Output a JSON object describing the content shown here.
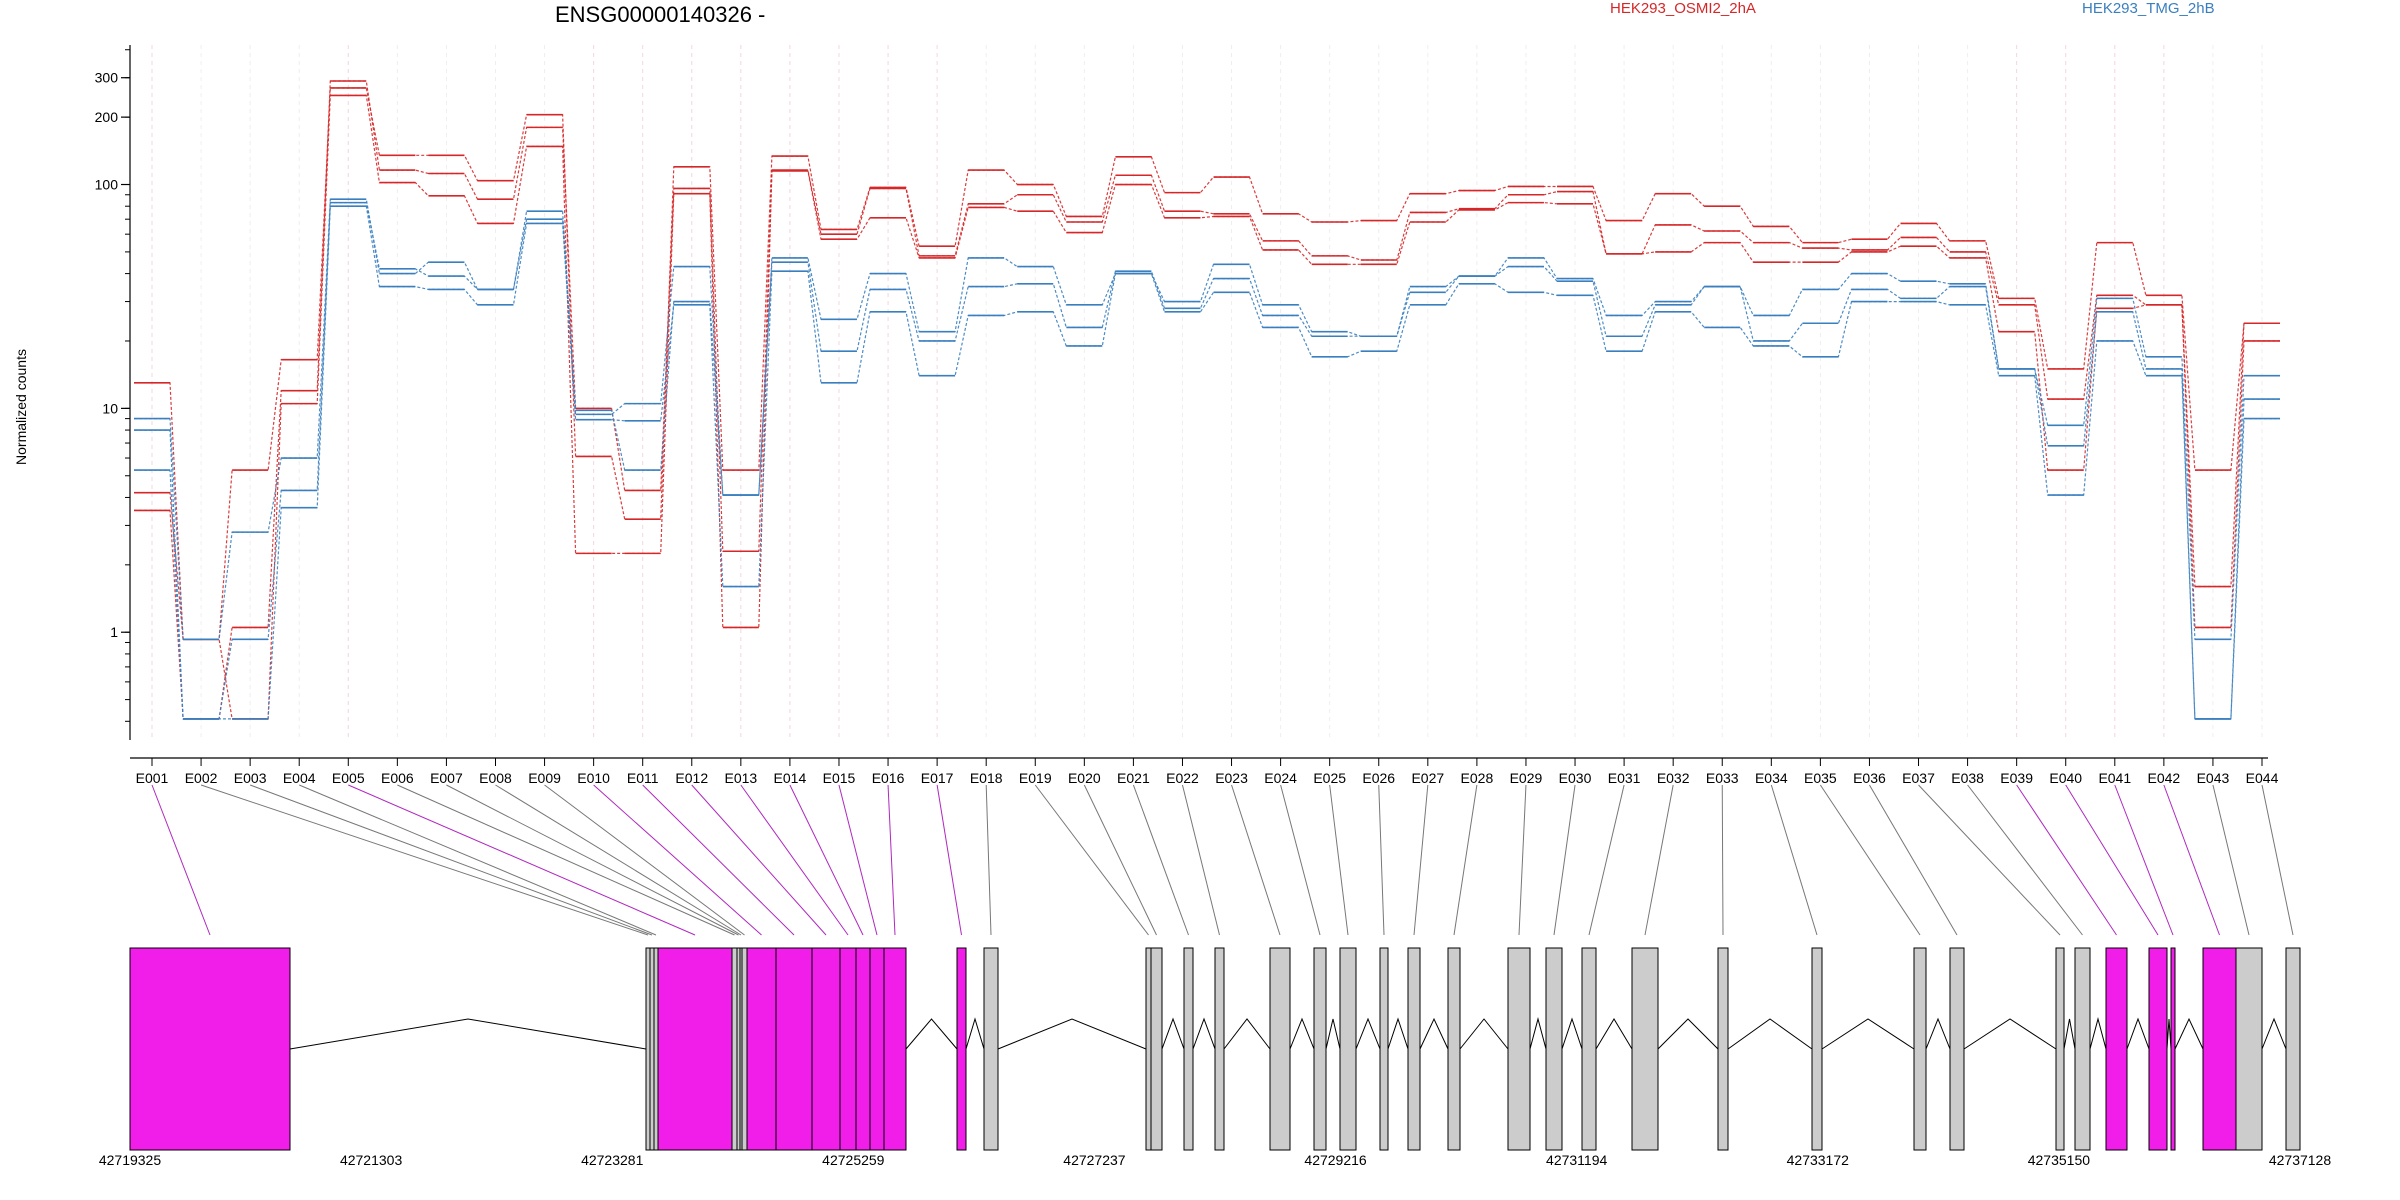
{
  "chart_data": {
    "type": "line",
    "title": "ENSG00000140326 -",
    "ylabel": "Normalized counts",
    "yscale": "log",
    "ylim": [
      0.33,
      420
    ],
    "y_ticks": [
      1,
      10,
      100,
      200,
      300
    ],
    "y_tick_labels": [
      "1",
      "10",
      "100",
      "200",
      "300"
    ],
    "categories": [
      "E001",
      "E002",
      "E003",
      "E004",
      "E005",
      "E006",
      "E007",
      "E008",
      "E009",
      "E010",
      "E011",
      "E012",
      "E013",
      "E014",
      "E015",
      "E016",
      "E017",
      "E018",
      "E019",
      "E020",
      "E021",
      "E022",
      "E023",
      "E024",
      "E025",
      "E026",
      "E027",
      "E028",
      "E029",
      "E030",
      "E031",
      "E032",
      "E033",
      "E034",
      "E035",
      "E036",
      "E037",
      "E038",
      "E039",
      "E040",
      "E041",
      "E042",
      "E043",
      "E044"
    ],
    "legend": [
      {
        "label": "HEK293_OSMI2_2hA",
        "color": "#d62728"
      },
      {
        "label": "HEK293_TMG_2hB",
        "color": "#3a7fbf"
      }
    ],
    "series": [
      {
        "group": "HEK293_OSMI2_2hA",
        "color": "#d62728",
        "values": [
          13,
          0.93,
          5.3,
          16.5,
          270,
          135,
          135,
          104,
          205,
          6.1,
          3.2,
          120,
          5.3,
          134,
          63,
          97,
          53,
          116,
          100,
          72,
          133,
          92,
          108,
          74,
          68,
          69,
          91,
          94,
          98,
          98,
          69,
          91,
          80,
          65,
          55,
          57,
          67,
          56,
          31,
          15,
          55,
          32,
          5.3,
          24
        ]
      },
      {
        "group": "HEK293_OSMI2_2hA",
        "color": "#d62728",
        "values": [
          3.5,
          0.41,
          1.05,
          12,
          290,
          116,
          112,
          86,
          180,
          10,
          4.3,
          96,
          2.3,
          116,
          60,
          96,
          48,
          82,
          90,
          68,
          110,
          76,
          74,
          56,
          48,
          46,
          75,
          78,
          90,
          93,
          49,
          66,
          62,
          55,
          52,
          51,
          58,
          50,
          29,
          11,
          32,
          29,
          1.6,
          24
        ]
      },
      {
        "group": "HEK293_OSMI2_2hA",
        "color": "#d62728",
        "values": [
          4.2,
          0.93,
          0.41,
          10.5,
          250,
          102,
          89,
          67,
          148,
          2.25,
          2.25,
          91,
          1.05,
          115,
          57,
          71,
          47,
          79,
          76,
          61,
          100,
          71,
          72,
          51,
          44,
          44,
          68,
          77,
          83,
          82,
          49,
          50,
          55,
          45,
          45,
          50,
          53,
          47,
          22,
          5.3,
          28,
          29,
          1.05,
          20
        ]
      },
      {
        "group": "HEK293_TMG_2hB",
        "color": "#3a7fbf",
        "values": [
          9,
          0.93,
          2.8,
          6,
          86,
          40,
          45,
          34,
          76,
          9.4,
          10.5,
          43,
          4.1,
          47,
          25,
          40,
          22,
          47,
          43,
          29,
          40,
          30,
          44,
          29,
          22,
          21,
          35,
          39,
          47,
          38,
          26,
          30,
          35,
          26,
          34,
          40,
          37,
          36,
          15,
          8.4,
          31,
          17,
          0.93,
          14
        ]
      },
      {
        "group": "HEK293_TMG_2hB",
        "color": "#3a7fbf",
        "values": [
          8,
          0.41,
          0.93,
          4.3,
          83,
          42,
          39,
          34,
          70,
          9.8,
          5.3,
          30,
          4.1,
          45,
          18,
          34,
          20,
          35,
          36,
          23,
          41,
          28,
          38,
          26,
          21,
          21,
          33,
          39,
          43,
          37,
          21,
          29,
          35,
          20,
          24,
          34,
          31,
          35,
          15,
          6.8,
          27,
          15,
          0.41,
          11
        ]
      },
      {
        "group": "HEK293_TMG_2hB",
        "color": "#3a7fbf",
        "values": [
          5.3,
          0.41,
          0.41,
          3.6,
          80,
          35,
          34,
          29,
          67,
          8.9,
          8.8,
          29,
          1.6,
          41,
          13,
          27,
          14,
          26,
          27,
          19,
          40,
          27,
          33,
          23,
          17,
          18,
          29,
          36,
          33,
          32,
          18,
          27,
          23,
          19,
          17,
          30,
          30,
          29,
          14,
          4.1,
          20,
          14,
          0.41,
          9
        ]
      }
    ],
    "gene_model": {
      "coordinates": [
        "42719325",
        "42721303",
        "42723281",
        "42725259",
        "42727237",
        "42729216",
        "42731194",
        "42733172",
        "42735150",
        "42737128"
      ],
      "highlight_color": "#f01ee8",
      "exon_color": "#cccccc",
      "highlighted_exons": [
        "E001",
        "E005",
        "E010",
        "E011",
        "E012",
        "E013",
        "E014",
        "E015",
        "E016",
        "E017",
        "E039",
        "E040",
        "E041",
        "E042"
      ]
    }
  }
}
